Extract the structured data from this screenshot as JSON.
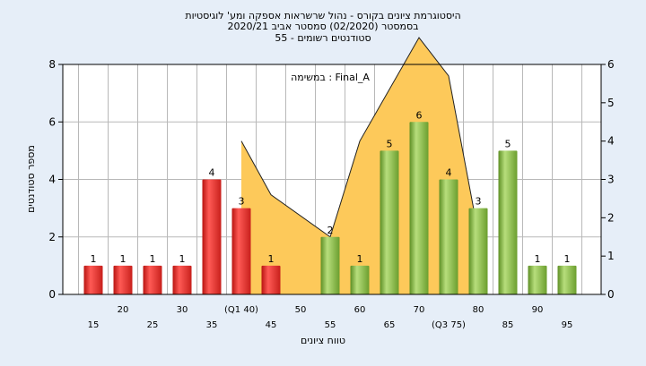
{
  "chart_data": {
    "type": "bar",
    "title_lines": [
      "היסטוגרמת ציונים בקורס - נהול שרשראות אספקה ומע' לוגיסטיות",
      "בסמסטר  (02/2020)  סמסטר אביב 2020/21",
      "סטודנטים רשומים - 55"
    ],
    "annotation": "במשימה : Final_A",
    "xlabel": "טווח ציונים",
    "ylabel": "מספר סטודנטים",
    "categories": [
      "15",
      "20",
      "25",
      "30",
      "35",
      "(Q1 40)",
      "45",
      "50",
      "55",
      "60",
      "65",
      "70",
      "(Q3 75)",
      "80",
      "85",
      "90",
      "95"
    ],
    "values": [
      1,
      1,
      1,
      1,
      4,
      3,
      1,
      0,
      2,
      1,
      5,
      6,
      4,
      3,
      5,
      1,
      1
    ],
    "bar_colors": [
      "red",
      "red",
      "red",
      "red",
      "red",
      "red",
      "red",
      "green",
      "green",
      "green",
      "green",
      "green",
      "green",
      "green",
      "green",
      "green",
      "green"
    ],
    "ylim_left": [
      0,
      8
    ],
    "yticks_left": [
      0,
      2,
      4,
      6,
      8
    ],
    "ylim_right": [
      0,
      6
    ],
    "yticks_right": [
      0,
      1,
      2,
      3,
      4,
      5,
      6
    ],
    "area_series": {
      "x": [
        40,
        45,
        55,
        60,
        70,
        75,
        80
      ],
      "y": [
        4,
        2.6,
        1.5,
        4,
        6.7,
        5.7,
        1.6
      ]
    },
    "grid": true,
    "colors": {
      "red": "#e8332e",
      "green": "#8cc04a",
      "area": "#fdc95a",
      "plot_bg": "#ffffff",
      "grid": "#b8b8b8"
    }
  }
}
